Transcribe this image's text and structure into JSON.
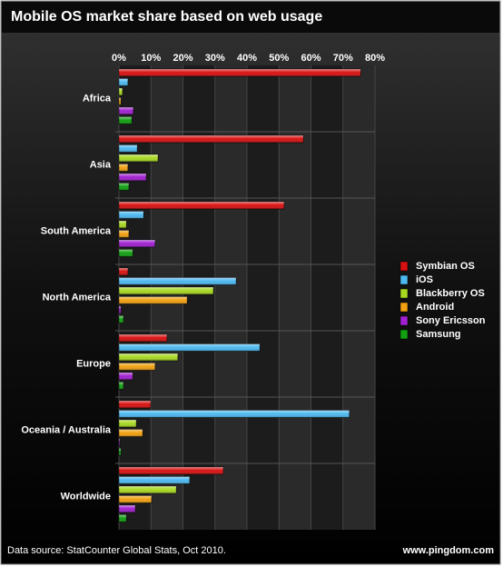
{
  "chart_data": {
    "type": "bar",
    "orientation": "horizontal",
    "title": "Mobile OS market share based on web usage",
    "categories": [
      "Africa",
      "Asia",
      "South America",
      "North America",
      "Europe",
      "Oceania / Australia",
      "Worldwide"
    ],
    "series": [
      {
        "name": "Symbian OS",
        "color": "#d81010",
        "values": [
          75.5,
          57.6,
          51.6,
          2.8,
          15,
          9.9,
          32.6
        ]
      },
      {
        "name": "iOS",
        "color": "#4cb8f0",
        "values": [
          2.8,
          5.7,
          7.7,
          36.6,
          44,
          72,
          22.1
        ]
      },
      {
        "name": "Blackberry OS",
        "color": "#a8d820",
        "values": [
          1.1,
          12.2,
          2.3,
          29.5,
          18.4,
          5.4,
          17.9
        ]
      },
      {
        "name": "Android",
        "color": "#f0a010",
        "values": [
          0.6,
          2.8,
          3.1,
          21.3,
          11.3,
          7.4,
          10.2
        ]
      },
      {
        "name": "Sony Ericsson",
        "color": "#a020d0",
        "values": [
          4.5,
          8.5,
          11.3,
          0.6,
          4.3,
          0.3,
          5.1
        ]
      },
      {
        "name": "Samsung",
        "color": "#10a010",
        "values": [
          4,
          3.1,
          4.3,
          1.4,
          1.4,
          0.6,
          2.3
        ]
      }
    ],
    "xlim": [
      0,
      80
    ],
    "xticks": [
      {
        "value": 0,
        "label": "0%"
      },
      {
        "value": 10,
        "label": "10%"
      },
      {
        "value": 20,
        "label": "20%"
      },
      {
        "value": 30,
        "label": "30%"
      },
      {
        "value": 40,
        "label": "40%"
      },
      {
        "value": 50,
        "label": "50%"
      },
      {
        "value": 60,
        "label": "60%"
      },
      {
        "value": 70,
        "label": "70%"
      },
      {
        "value": 80,
        "label": "80%"
      }
    ],
    "grid": true,
    "legend": "right",
    "source": "Data source: StatCounter Global Stats, Oct 2010.",
    "credit": "www.pingdom.com"
  }
}
